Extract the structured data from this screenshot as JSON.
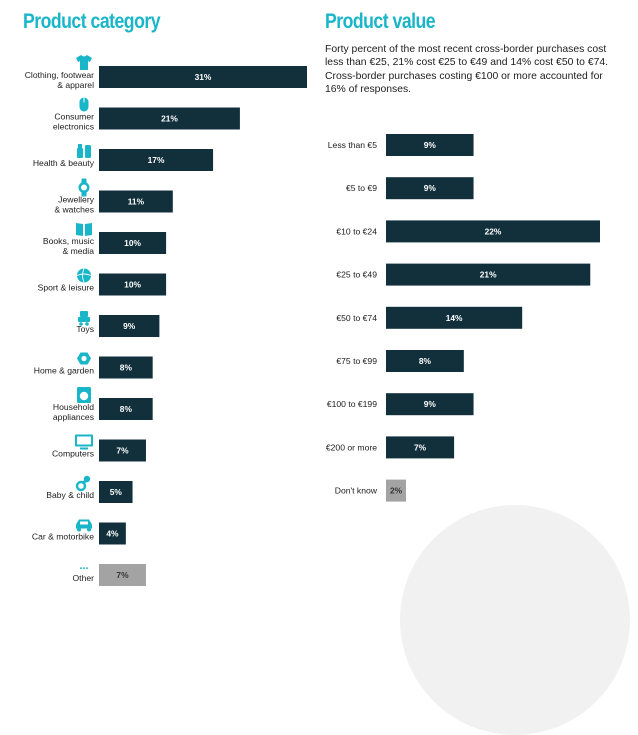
{
  "colors": {
    "title": "#19b6c9",
    "bar": "#11303c",
    "bar_other": "#a3a3a3",
    "icon": "#19b6c9",
    "text": "#1d1d1d"
  },
  "left": {
    "title": "Product category"
  },
  "right": {
    "title": "Product value",
    "intro": "Forty percent of the most recent cross-border purchases cost less than €25, 21% cost €25 to €49 and 14% cost €50 to €74. Cross-border purchases costing €100 or more accounted for 16% of responses."
  },
  "chart_data": [
    {
      "type": "bar",
      "orientation": "horizontal",
      "title": "Product category",
      "categories": [
        "Clothing, footwear\n& apparel",
        "Consumer\nelectronics",
        "Health & beauty",
        "Jewellery\n& watches",
        "Books, music\n& media",
        "Sport & leisure",
        "Toys",
        "Home & garden",
        "Household\nappliances",
        "Computers",
        "Baby & child",
        "Car & motorbike",
        "Other"
      ],
      "values": [
        31,
        21,
        17,
        11,
        10,
        10,
        9,
        8,
        8,
        7,
        5,
        4,
        7
      ],
      "value_labels": [
        "31%",
        "21%",
        "17%",
        "11%",
        "10%",
        "10%",
        "9%",
        "8%",
        "8%",
        "7%",
        "5%",
        "4%",
        "7%"
      ],
      "icons": [
        "tshirt-icon",
        "mouse-icon",
        "cosmetics-icon",
        "watch-icon",
        "book-icon",
        "ball-icon",
        "toy-icon",
        "flower-icon",
        "washing-machine-icon",
        "monitor-icon",
        "pacifier-icon",
        "car-icon",
        "ellipsis-icon"
      ],
      "icon_glyphs": [
        "",
        "",
        "",
        "",
        "",
        "",
        "",
        "",
        "",
        "",
        "",
        "",
        "..."
      ],
      "highlight_last": true,
      "xlim": [
        0,
        31
      ]
    },
    {
      "type": "bar",
      "orientation": "horizontal",
      "title": "Product value",
      "categories": [
        "Less than €5",
        "€5 to €9",
        "€10 to €24",
        "€25 to €49",
        "€50 to €74",
        "€75 to €99",
        "€100 to €199",
        "€200 or more",
        "Don't know"
      ],
      "values": [
        9,
        9,
        22,
        21,
        14,
        8,
        9,
        7,
        2
      ],
      "value_labels": [
        "9%",
        "9%",
        "22%",
        "21%",
        "14%",
        "8%",
        "9%",
        "7%",
        "2%"
      ],
      "highlight_last": true,
      "xlim": [
        0,
        22
      ]
    }
  ]
}
